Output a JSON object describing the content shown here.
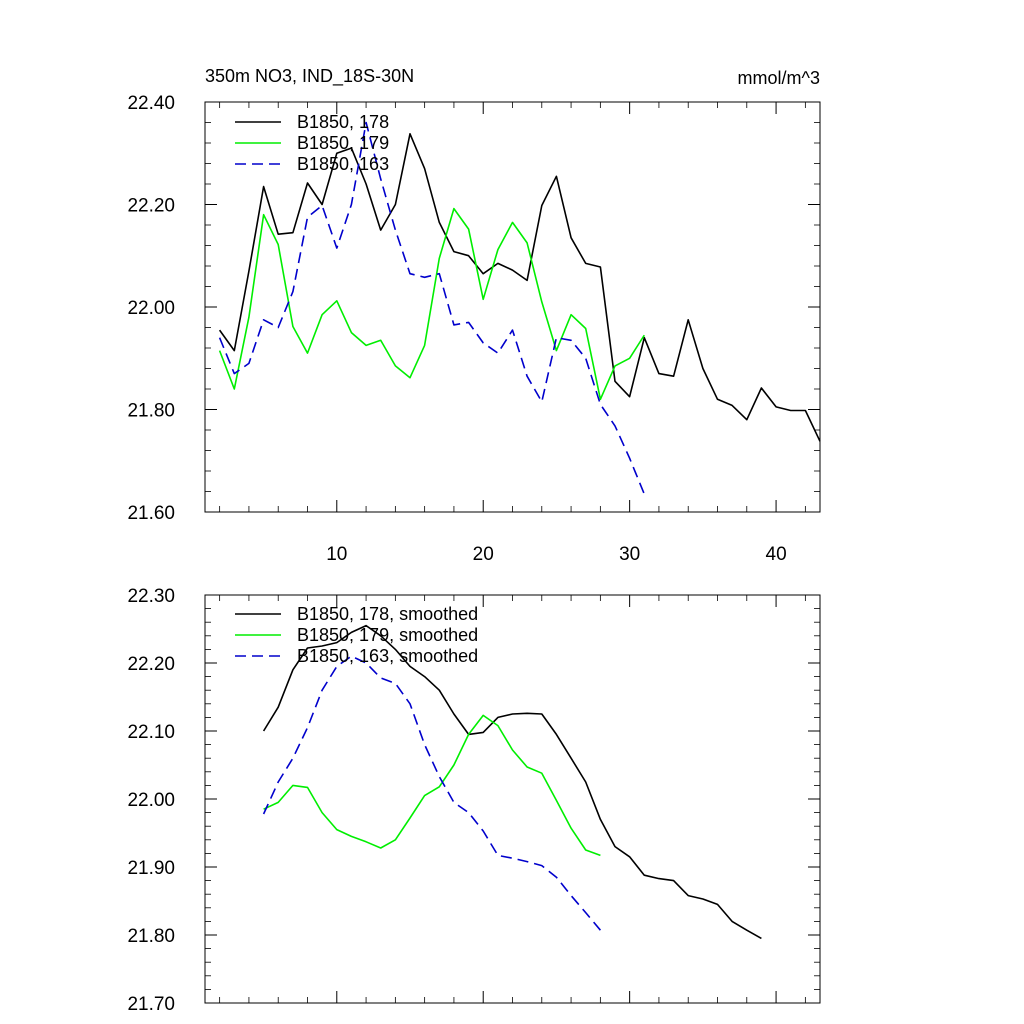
{
  "chart_data": [
    {
      "type": "line",
      "title": "350m NO3, IND_18S-30N",
      "units": "mmol/m^3",
      "xlim": [
        1,
        43
      ],
      "ylim": [
        21.6,
        22.4
      ],
      "x_ticks": [
        10,
        20,
        30,
        40
      ],
      "x_tick_labels": [
        "10",
        "20",
        "30",
        "40"
      ],
      "y_ticks": [
        21.6,
        21.8,
        22.0,
        22.2,
        22.4
      ],
      "y_tick_labels": [
        "21.60",
        "21.80",
        "22.00",
        "22.20",
        "22.40"
      ],
      "legend_position": "top-left",
      "series": [
        {
          "name": "B1850, 178",
          "color": "#000000",
          "dash": "solid",
          "x_start": 2,
          "values": [
            21.955,
            21.915,
            22.07,
            22.235,
            22.142,
            22.145,
            22.242,
            22.2,
            22.3,
            22.31,
            22.24,
            22.15,
            22.2,
            22.338,
            22.27,
            22.165,
            22.108,
            22.1,
            22.065,
            22.085,
            22.072,
            22.052,
            22.198,
            22.255,
            22.135,
            22.085,
            22.078,
            21.855,
            21.825,
            21.94,
            21.87,
            21.865,
            21.975,
            21.88,
            21.82,
            21.808,
            21.78,
            21.842,
            21.805,
            21.798,
            21.798,
            21.738
          ]
        },
        {
          "name": "B1850, 179",
          "color": "#00ee00",
          "dash": "solid",
          "x_start": 2,
          "values": [
            21.915,
            21.84,
            21.98,
            22.18,
            22.122,
            21.962,
            21.91,
            21.985,
            22.012,
            21.95,
            21.925,
            21.935,
            21.885,
            21.862,
            21.925,
            22.095,
            22.192,
            22.152,
            22.015,
            22.112,
            22.165,
            22.125,
            22.01,
            21.915,
            21.985,
            21.958,
            21.82,
            21.885,
            21.9,
            21.945
          ]
        },
        {
          "name": "B1850, 163",
          "color": "#0000cc",
          "dash": "dashed",
          "x_start": 2,
          "values": [
            21.94,
            21.87,
            21.89,
            21.975,
            21.96,
            22.03,
            22.175,
            22.198,
            22.115,
            22.2,
            22.36,
            22.25,
            22.15,
            22.065,
            22.058,
            22.065,
            21.965,
            21.97,
            21.93,
            21.91,
            21.955,
            21.865,
            21.815,
            21.94,
            21.935,
            21.9,
            21.81,
            21.768,
            21.705,
            21.635
          ]
        }
      ]
    },
    {
      "type": "line",
      "title": "",
      "xlim": [
        1,
        43
      ],
      "ylim": [
        21.7,
        22.3
      ],
      "x_ticks": [
        10,
        20,
        30,
        40
      ],
      "x_tick_labels": [],
      "y_ticks": [
        21.7,
        21.8,
        21.9,
        22.0,
        22.1,
        22.2,
        22.3
      ],
      "y_tick_labels": [
        "21.70",
        "21.80",
        "21.90",
        "22.00",
        "22.10",
        "22.20",
        "22.30"
      ],
      "legend_position": "top-left",
      "series": [
        {
          "name": "B1850, 178, smoothed",
          "color": "#000000",
          "dash": "solid",
          "x_start": 5,
          "values": [
            22.1,
            22.135,
            22.19,
            22.222,
            22.225,
            22.23,
            22.245,
            22.255,
            22.24,
            22.22,
            22.195,
            22.18,
            22.16,
            22.125,
            22.095,
            22.098,
            22.12,
            22.125,
            22.126,
            22.125,
            22.095,
            22.06,
            22.025,
            21.97,
            21.93,
            21.915,
            21.888,
            21.883,
            21.88,
            21.858,
            21.853,
            21.845,
            21.82,
            21.807,
            21.795
          ]
        },
        {
          "name": "B1850, 179, smoothed",
          "color": "#00ee00",
          "dash": "solid",
          "x_start": 5,
          "values": [
            21.985,
            21.995,
            22.02,
            22.017,
            21.98,
            21.955,
            21.945,
            21.937,
            21.928,
            21.94,
            21.972,
            22.005,
            22.018,
            22.05,
            22.095,
            22.123,
            22.108,
            22.072,
            22.047,
            22.038,
            21.998,
            21.957,
            21.925,
            21.917
          ]
        },
        {
          "name": "B1850, 163, smoothed",
          "color": "#0000cc",
          "dash": "dashed",
          "x_start": 5,
          "values": [
            21.978,
            22.025,
            22.06,
            22.105,
            22.16,
            22.195,
            22.21,
            22.2,
            22.178,
            22.17,
            22.14,
            22.08,
            22.033,
            21.995,
            21.98,
            21.953,
            21.917,
            21.913,
            21.908,
            21.902,
            21.885,
            21.858,
            21.833,
            21.807
          ]
        }
      ]
    }
  ]
}
